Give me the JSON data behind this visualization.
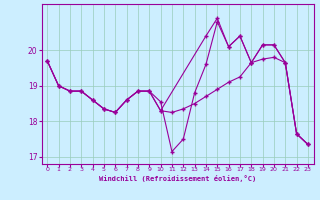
{
  "xlabel": "Windchill (Refroidissement éolien,°C)",
  "ylabel": "",
  "bg_color": "#cceeff",
  "line_color": "#990099",
  "grid_color": "#99ccbb",
  "xlim": [
    -0.5,
    23.5
  ],
  "ylim": [
    16.8,
    21.3
  ],
  "xticks": [
    0,
    1,
    2,
    3,
    4,
    5,
    6,
    7,
    8,
    9,
    10,
    11,
    12,
    13,
    14,
    15,
    16,
    17,
    18,
    19,
    20,
    21,
    22,
    23
  ],
  "yticks": [
    17,
    18,
    19,
    20
  ],
  "line1_x": [
    0,
    1,
    2,
    3,
    4,
    5,
    6,
    7,
    8,
    9,
    10,
    11,
    12,
    13,
    14,
    15,
    16,
    17,
    18,
    19,
    20,
    21,
    22,
    23
  ],
  "line1_y": [
    19.7,
    19.0,
    18.85,
    18.85,
    18.6,
    18.35,
    18.25,
    18.6,
    18.85,
    18.85,
    18.55,
    17.15,
    17.5,
    18.8,
    19.6,
    20.8,
    20.1,
    20.4,
    19.65,
    20.15,
    20.15,
    19.65,
    17.65,
    17.35
  ],
  "line2_x": [
    0,
    1,
    2,
    3,
    4,
    5,
    6,
    7,
    8,
    9,
    10,
    11,
    12,
    13,
    14,
    15,
    16,
    17,
    18,
    19,
    20,
    21,
    22,
    23
  ],
  "line2_y": [
    19.7,
    19.0,
    18.85,
    18.85,
    18.6,
    18.35,
    18.25,
    18.6,
    18.85,
    18.85,
    18.3,
    18.25,
    18.35,
    18.5,
    18.7,
    18.9,
    19.1,
    19.25,
    19.65,
    19.75,
    19.8,
    19.65,
    17.65,
    17.35
  ],
  "line3_x": [
    0,
    1,
    2,
    3,
    4,
    5,
    6,
    7,
    8,
    9,
    10,
    14,
    15,
    16,
    17,
    18,
    19,
    20,
    21,
    22,
    23
  ],
  "line3_y": [
    19.7,
    19.0,
    18.85,
    18.85,
    18.6,
    18.35,
    18.25,
    18.6,
    18.85,
    18.85,
    18.3,
    20.4,
    20.9,
    20.1,
    20.4,
    19.65,
    20.15,
    20.15,
    19.65,
    17.65,
    17.35
  ]
}
